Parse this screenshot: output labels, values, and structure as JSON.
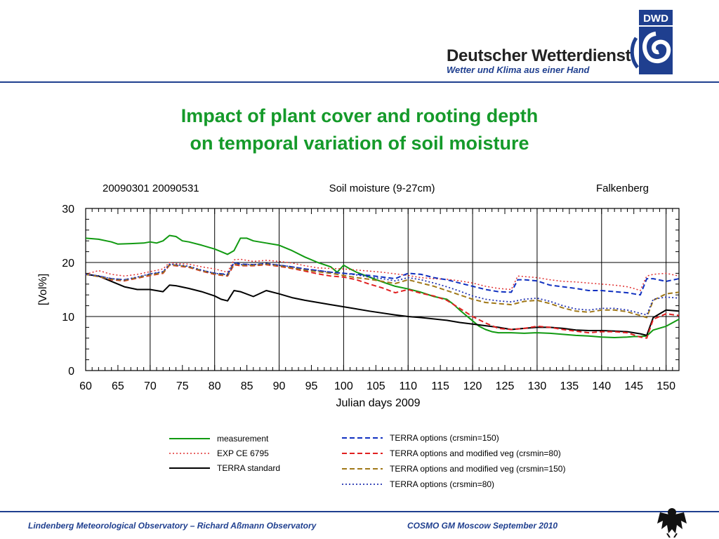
{
  "header": {
    "org_name": "Deutscher Wetterdienst",
    "slogan": "Wetter und Klima aus einer Hand",
    "logo_text": "DWD"
  },
  "title_lines": [
    "Impact of plant cover and rooting depth",
    "on temporal variation of soil moisture"
  ],
  "footer": {
    "left": "Lindenberg Meteorological Observatory – Richard Aßmann Observatory",
    "right": "COSMO GM Moscow September 2010"
  },
  "colors": {
    "title": "#159a2a",
    "accent_blue": "#1f3f8f"
  },
  "chart_data": {
    "type": "line",
    "header_left": "20090301 20090531",
    "title": "Soil moisture (9-27cm)",
    "header_right": "Falkenberg",
    "xlabel": "Julian days 2009",
    "ylabel": "[Vol%]",
    "xlim": [
      60,
      152
    ],
    "ylim": [
      0,
      30
    ],
    "xticks": [
      60,
      65,
      70,
      75,
      80,
      85,
      90,
      95,
      100,
      105,
      110,
      115,
      120,
      125,
      130,
      135,
      140,
      145,
      150
    ],
    "yticks": [
      0,
      10,
      20,
      30
    ],
    "grid_x": [
      70,
      80,
      90,
      100,
      110,
      120,
      130,
      140,
      150
    ],
    "grid_y": [
      10,
      20
    ],
    "series": [
      {
        "name": "measurement",
        "color": "#119a11",
        "style": "solid",
        "width": 2,
        "x": [
          60,
          62,
          64,
          65,
          67,
          69,
          70,
          71,
          72,
          73,
          74,
          75,
          76,
          78,
          80,
          81,
          82,
          83,
          84,
          85,
          86,
          88,
          90,
          92,
          94,
          96,
          98,
          99,
          100,
          101,
          102,
          104,
          106,
          108,
          110,
          112,
          114,
          116,
          117,
          118,
          119,
          120,
          121,
          122,
          123,
          124,
          126,
          128,
          130,
          132,
          134,
          136,
          138,
          140,
          142,
          144,
          145,
          146,
          147,
          148,
          150,
          152
        ],
        "y": [
          24.5,
          24.3,
          23.8,
          23.4,
          23.5,
          23.6,
          23.8,
          23.6,
          24,
          25,
          24.8,
          24,
          23.8,
          23.2,
          22.5,
          22,
          21.5,
          22.2,
          24.5,
          24.5,
          24,
          23.6,
          23.2,
          22.2,
          21,
          20,
          19.2,
          18.2,
          19.5,
          18.8,
          18.2,
          17.3,
          16.4,
          15.6,
          15.1,
          14.5,
          13.7,
          13.2,
          12.3,
          11.2,
          10.2,
          9.2,
          8.2,
          7.6,
          7.2,
          7.0,
          7.0,
          6.9,
          7.0,
          6.9,
          6.7,
          6.5,
          6.4,
          6.2,
          6.1,
          6.2,
          6.3,
          6.3,
          6.4,
          7.5,
          8.2,
          9.5
        ]
      },
      {
        "name": "EXP CE 6795",
        "color": "#e03030",
        "style": "dotted",
        "width": 1.5,
        "x": [
          60,
          62,
          64,
          66,
          68,
          70,
          72,
          73,
          74,
          76,
          78,
          80,
          82,
          83,
          84,
          86,
          88,
          90,
          92,
          94,
          96,
          98,
          100,
          102,
          104,
          106,
          108,
          110,
          112,
          114,
          116,
          118,
          120,
          122,
          124,
          126,
          127,
          130,
          132,
          134,
          136,
          138,
          140,
          142,
          144,
          145,
          146,
          147,
          148,
          150,
          152
        ],
        "y": [
          17.8,
          18.5,
          17.8,
          17.5,
          17.8,
          18.3,
          18.8,
          20,
          19.8,
          19.7,
          19.2,
          18.8,
          18.2,
          20.5,
          20.6,
          20.2,
          20.4,
          20.2,
          19.9,
          19.4,
          19,
          18.9,
          18.8,
          18.6,
          18.4,
          18.2,
          17.9,
          17.6,
          17.2,
          17,
          16.9,
          16.6,
          16.2,
          15.6,
          15.2,
          15,
          17.5,
          17.2,
          16.8,
          16.5,
          16.4,
          16.2,
          16,
          15.8,
          15.5,
          15.2,
          14.8,
          17.5,
          17.8,
          18,
          17.5
        ]
      },
      {
        "name": "TERRA standard",
        "color": "#000000",
        "style": "solid",
        "width": 2,
        "x": [
          60,
          62,
          64,
          66,
          68,
          70,
          72,
          73,
          74,
          76,
          78,
          80,
          81,
          82,
          83,
          84,
          86,
          88,
          90,
          92,
          94,
          96,
          98,
          100,
          104,
          108,
          110,
          112,
          116,
          118,
          120,
          122,
          124,
          126,
          128,
          130,
          132,
          134,
          136,
          138,
          140,
          142,
          144,
          145,
          146,
          147,
          148,
          150,
          152
        ],
        "y": [
          17.8,
          17.5,
          16.5,
          15.5,
          15,
          15,
          14.6,
          15.8,
          15.7,
          15.2,
          14.6,
          13.8,
          13.2,
          12.9,
          14.8,
          14.6,
          13.7,
          14.8,
          14.2,
          13.5,
          13,
          12.6,
          12.2,
          11.8,
          11,
          10.3,
          10,
          9.8,
          9.3,
          8.9,
          8.6,
          8.3,
          8,
          7.6,
          7.8,
          8,
          8,
          7.8,
          7.5,
          7.4,
          7.4,
          7.3,
          7.2,
          7,
          6.8,
          6.5,
          9.8,
          11.2,
          11
        ]
      },
      {
        "name": "TERRA options (crsmin=150)",
        "color": "#1030c0",
        "style": "dashed",
        "width": 2,
        "x": [
          60,
          62,
          64,
          66,
          68,
          70,
          72,
          73,
          74,
          76,
          78,
          80,
          82,
          83,
          84,
          86,
          88,
          90,
          92,
          94,
          96,
          98,
          100,
          102,
          104,
          106,
          108,
          110,
          112,
          114,
          116,
          118,
          120,
          122,
          124,
          126,
          127,
          128,
          130,
          132,
          134,
          136,
          138,
          140,
          142,
          144,
          145,
          146,
          147,
          148,
          150,
          152
        ],
        "y": [
          17.8,
          17.5,
          17,
          16.8,
          17.2,
          17.8,
          18.2,
          19.6,
          19.5,
          19.2,
          18.5,
          18,
          17.8,
          20,
          19.7,
          19.6,
          19.8,
          19.5,
          19.2,
          18.8,
          18.5,
          18.2,
          18,
          17.8,
          17.6,
          17.3,
          17,
          18,
          17.8,
          17.2,
          16.8,
          16.2,
          15.6,
          15,
          14.6,
          14.5,
          16.8,
          16.8,
          16.6,
          15.8,
          15.5,
          15.2,
          14.8,
          14.8,
          14.6,
          14.4,
          14.2,
          14,
          17,
          17,
          16.5,
          17
        ]
      },
      {
        "name": "TERRA options and modified veg (crsmin=80)",
        "color": "#e02020",
        "style": "dashed",
        "width": 2,
        "x": [
          60,
          62,
          64,
          66,
          68,
          70,
          72,
          73,
          74,
          76,
          78,
          80,
          82,
          83,
          84,
          86,
          88,
          90,
          92,
          94,
          96,
          98,
          100,
          102,
          104,
          106,
          108,
          110,
          112,
          114,
          116,
          118,
          120,
          122,
          124,
          126,
          128,
          130,
          132,
          134,
          136,
          138,
          140,
          142,
          144,
          145,
          146,
          147,
          148,
          150,
          152
        ],
        "y": [
          17.8,
          17.4,
          16.8,
          16.6,
          17.1,
          17.6,
          18,
          19.5,
          19.4,
          19.1,
          18.4,
          17.8,
          17.5,
          19.6,
          19.4,
          19.4,
          19.6,
          19.3,
          18.9,
          18.4,
          17.9,
          17.5,
          17.3,
          16.8,
          16,
          15.3,
          14.4,
          15,
          14.3,
          13.8,
          13,
          11.5,
          10,
          8.8,
          7.8,
          7.6,
          7.8,
          8.2,
          8,
          7.6,
          7.3,
          7,
          7.2,
          7.2,
          7,
          6.6,
          6.2,
          6,
          9.5,
          10.5,
          10.2
        ]
      },
      {
        "name": "TERRA options and modified veg (crsmin=150)",
        "color": "#a07818",
        "style": "dashed",
        "width": 2,
        "x": [
          60,
          62,
          64,
          66,
          68,
          70,
          72,
          73,
          74,
          76,
          78,
          80,
          82,
          83,
          84,
          86,
          88,
          90,
          92,
          94,
          96,
          98,
          100,
          102,
          104,
          106,
          108,
          110,
          112,
          114,
          116,
          118,
          120,
          122,
          124,
          126,
          128,
          130,
          132,
          134,
          136,
          138,
          140,
          142,
          144,
          145,
          146,
          147,
          148,
          150,
          152
        ],
        "y": [
          17.8,
          17.4,
          16.9,
          16.7,
          17.2,
          17.7,
          18.1,
          19.6,
          19.5,
          19.2,
          18.5,
          17.9,
          17.6,
          19.8,
          19.5,
          19.5,
          19.7,
          19.4,
          19,
          18.6,
          18.3,
          18,
          17.6,
          17.2,
          16.9,
          16.5,
          16.1,
          16.8,
          16.2,
          15.6,
          14.8,
          14,
          13.2,
          12.6,
          12.4,
          12.2,
          12.8,
          13,
          12.4,
          11.6,
          11,
          10.8,
          11.2,
          11.2,
          10.9,
          10.5,
          10.2,
          9.8,
          13,
          14.2,
          14.5
        ]
      },
      {
        "name": "TERRA options (crsmin=80)",
        "color": "#2030b0",
        "style": "dotted",
        "width": 1.8,
        "x": [
          60,
          62,
          64,
          66,
          68,
          70,
          72,
          73,
          74,
          76,
          78,
          80,
          82,
          83,
          84,
          86,
          88,
          90,
          92,
          94,
          96,
          98,
          100,
          102,
          104,
          106,
          108,
          110,
          112,
          114,
          116,
          118,
          120,
          122,
          124,
          126,
          128,
          130,
          132,
          134,
          136,
          138,
          140,
          142,
          144,
          145,
          146,
          147,
          148,
          150,
          152
        ],
        "y": [
          17.8,
          17.5,
          17,
          16.8,
          17.3,
          17.9,
          18.3,
          19.7,
          19.6,
          19.3,
          18.6,
          18,
          17.7,
          19.9,
          19.6,
          19.6,
          19.8,
          19.5,
          19.2,
          18.8,
          18.5,
          18.2,
          18,
          17.7,
          17.3,
          17,
          16.6,
          17.2,
          16.8,
          16.2,
          15.5,
          14.7,
          13.8,
          13.2,
          12.9,
          12.7,
          13.2,
          13.4,
          12.8,
          12,
          11.4,
          11.2,
          11.5,
          11.5,
          11.2,
          10.9,
          10.6,
          10.3,
          13.2,
          13.6,
          13.4
        ]
      }
    ]
  }
}
